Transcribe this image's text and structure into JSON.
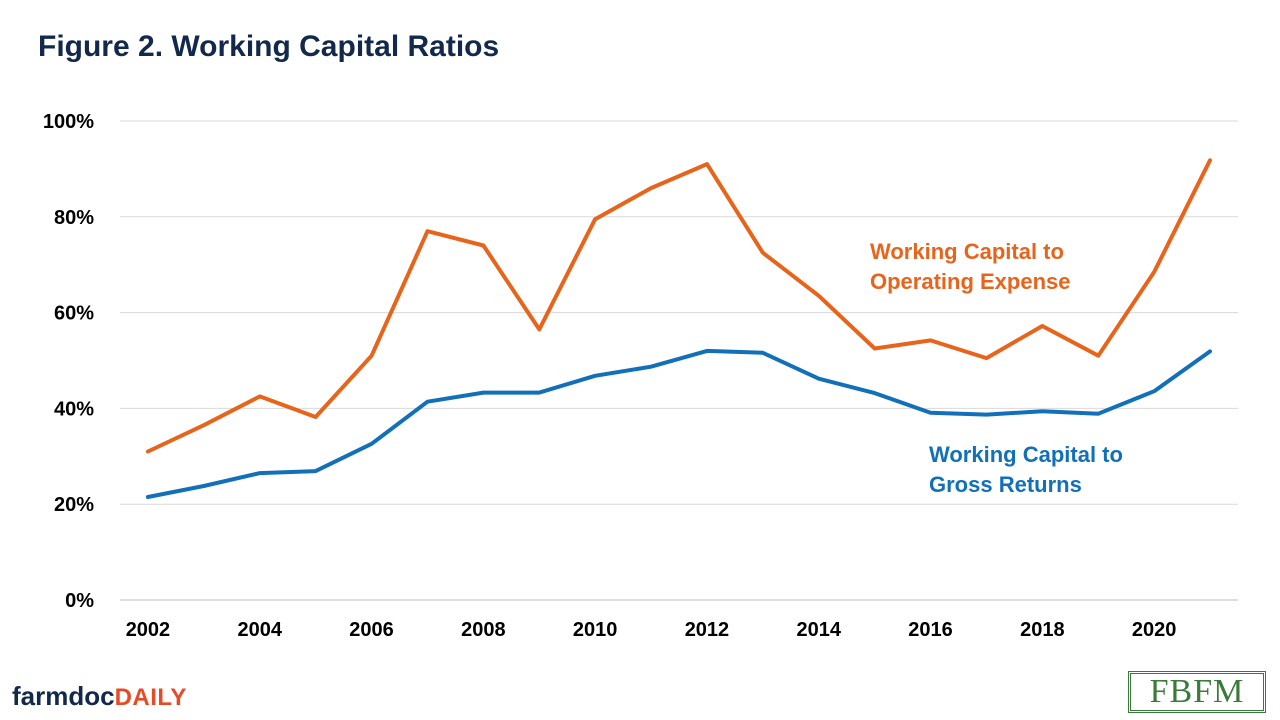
{
  "title": "Figure 2. Working Capital Ratios",
  "branding": {
    "farmdoc_part1": "farmdoc",
    "farmdoc_part2": "DAILY",
    "fbfm_logo": "FBFM"
  },
  "colors": {
    "title": "#13294b",
    "orange_series": "#e8641b",
    "blue_series": "#1170b8",
    "grid": "#d9d9d9",
    "logo_green": "#3a7a3a"
  },
  "chart_data": {
    "type": "line",
    "title": "Figure 2. Working Capital Ratios",
    "xlabel": "",
    "ylabel": "",
    "x": [
      2002,
      2003,
      2004,
      2005,
      2006,
      2007,
      2008,
      2009,
      2010,
      2011,
      2012,
      2013,
      2014,
      2015,
      2016,
      2017,
      2018,
      2019,
      2020,
      2021
    ],
    "xlim": [
      2001.5,
      2021.5
    ],
    "x_ticks": [
      "2002",
      "2004",
      "2006",
      "2008",
      "2010",
      "2012",
      "2014",
      "2016",
      "2018",
      "2020"
    ],
    "ylim": [
      0,
      100
    ],
    "y_ticks": [
      "0%",
      "20%",
      "40%",
      "60%",
      "80%",
      "100%"
    ],
    "grid": "horizontal",
    "legend": "inline labels",
    "series": [
      {
        "name": "Working Capital to Operating Expense",
        "label_lines": [
          "Working Capital to",
          "Operating Expense"
        ],
        "color": "#e8641b",
        "values": [
          31,
          36.5,
          42.5,
          38.2,
          51,
          77,
          74,
          56.5,
          79.5,
          86,
          91,
          72.5,
          63.5,
          52.5,
          54.2,
          50.5,
          57.2,
          51,
          68.5,
          91.8
        ]
      },
      {
        "name": "Working Capital to Gross Returns",
        "label_lines": [
          "Working Capital to",
          "Gross Returns"
        ],
        "color": "#1170b8",
        "values": [
          21.5,
          23.8,
          26.5,
          26.9,
          32.6,
          41.4,
          43.3,
          43.3,
          46.8,
          48.7,
          52,
          51.6,
          46.2,
          43.2,
          39.1,
          38.7,
          39.4,
          38.9,
          43.6,
          51.9
        ]
      }
    ]
  }
}
